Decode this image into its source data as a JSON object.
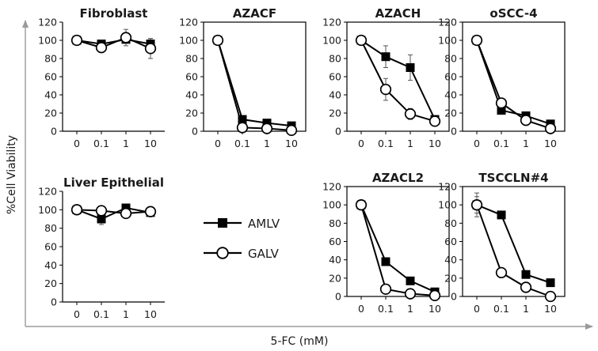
{
  "figure": {
    "ylabel": "%Cell Viability",
    "xlabel": "5-FC (mM)",
    "legend": [
      {
        "name": "AMLV",
        "marker": "filled-square"
      },
      {
        "name": "GALV",
        "marker": "open-circle"
      }
    ]
  },
  "chart_data": [
    {
      "type": "line",
      "title": "Fibroblast",
      "categories": [
        "0",
        "0.1",
        "1",
        "10"
      ],
      "ylim": [
        0,
        120
      ],
      "yticks": [
        0,
        20,
        40,
        60,
        80,
        100,
        120
      ],
      "framed": false,
      "series": [
        {
          "name": "AMLV",
          "values": [
            100,
            96,
            101,
            96
          ],
          "errors": [
            2,
            2,
            4,
            6
          ]
        },
        {
          "name": "GALV",
          "values": [
            100,
            92,
            103,
            91
          ],
          "errors": [
            2,
            2,
            9,
            11
          ]
        }
      ]
    },
    {
      "type": "line",
      "title": "AZACF",
      "categories": [
        "0",
        "0.1",
        "1",
        "10"
      ],
      "ylim": [
        0,
        120
      ],
      "yticks": [
        0,
        20,
        40,
        60,
        80,
        100,
        120
      ],
      "framed": true,
      "series": [
        {
          "name": "AMLV",
          "values": [
            100,
            13,
            9,
            6
          ],
          "errors": [
            2,
            2,
            1,
            1
          ]
        },
        {
          "name": "GALV",
          "values": [
            100,
            4,
            3,
            1
          ],
          "errors": [
            2,
            1,
            1,
            1
          ]
        }
      ]
    },
    {
      "type": "line",
      "title": "AZACH",
      "categories": [
        "0",
        "0.1",
        "1",
        "10"
      ],
      "ylim": [
        0,
        120
      ],
      "yticks": [
        0,
        20,
        40,
        60,
        80,
        100,
        120
      ],
      "framed": true,
      "series": [
        {
          "name": "AMLV",
          "values": [
            100,
            82,
            70,
            13
          ],
          "errors": [
            2,
            12,
            14,
            2
          ]
        },
        {
          "name": "GALV",
          "values": [
            100,
            46,
            19,
            11
          ],
          "errors": [
            2,
            12,
            6,
            2
          ]
        }
      ]
    },
    {
      "type": "line",
      "title": "oSCC-4",
      "categories": [
        "0",
        "0.1",
        "1",
        "10"
      ],
      "ylim": [
        0,
        120
      ],
      "yticks": [
        0,
        20,
        40,
        60,
        80,
        100,
        120
      ],
      "framed": true,
      "series": [
        {
          "name": "AMLV",
          "values": [
            100,
            23,
            17,
            8
          ],
          "errors": [
            4,
            2,
            2,
            1
          ]
        },
        {
          "name": "GALV",
          "values": [
            100,
            31,
            12,
            3
          ],
          "errors": [
            3,
            4,
            2,
            1
          ]
        }
      ]
    },
    {
      "type": "line",
      "title": "Liver Epithelial",
      "categories": [
        "0",
        "0.1",
        "1",
        "10"
      ],
      "ylim": [
        0,
        120
      ],
      "yticks": [
        0,
        20,
        40,
        60,
        80,
        100,
        120
      ],
      "framed": false,
      "series": [
        {
          "name": "AMLV",
          "values": [
            100,
            90,
            102,
            97
          ],
          "errors": [
            3,
            6,
            3,
            2
          ]
        },
        {
          "name": "GALV",
          "values": [
            100,
            99,
            96,
            98
          ],
          "errors": [
            3,
            3,
            2,
            5
          ]
        }
      ]
    },
    {
      "type": "line",
      "title": "AZACL2",
      "categories": [
        "0",
        "0.1",
        "1",
        "10"
      ],
      "ylim": [
        0,
        120
      ],
      "yticks": [
        0,
        20,
        40,
        60,
        80,
        100,
        120
      ],
      "framed": true,
      "series": [
        {
          "name": "AMLV",
          "values": [
            100,
            38,
            17,
            5
          ],
          "errors": [
            2,
            2,
            2,
            1
          ]
        },
        {
          "name": "GALV",
          "values": [
            100,
            8,
            3,
            1
          ],
          "errors": [
            2,
            1,
            1,
            1
          ]
        }
      ]
    },
    {
      "type": "line",
      "title": "TSCCLN#4",
      "categories": [
        "0",
        "0.1",
        "1",
        "10"
      ],
      "ylim": [
        0,
        120
      ],
      "yticks": [
        0,
        20,
        40,
        60,
        80,
        100,
        120
      ],
      "framed": true,
      "series": [
        {
          "name": "AMLV",
          "values": [
            100,
            89,
            24,
            15
          ],
          "errors": [
            13,
            2,
            2,
            2
          ]
        },
        {
          "name": "GALV",
          "values": [
            100,
            26,
            10,
            0
          ],
          "errors": [
            9,
            2,
            1,
            1
          ]
        }
      ]
    }
  ]
}
